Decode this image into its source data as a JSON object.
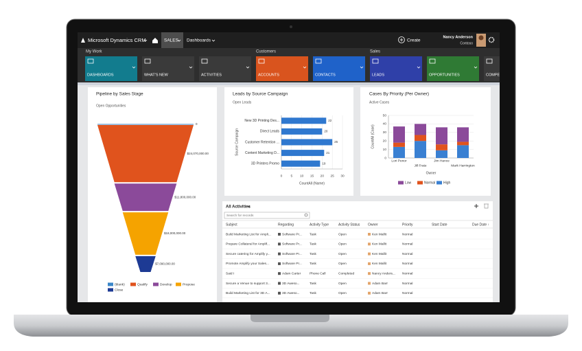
{
  "nav": {
    "brand": "Microsoft Dynamics CRM",
    "tab": "SALES",
    "menu": "Dashboards",
    "create": "Create",
    "user": "Nancy Anderson",
    "org": "Contoso"
  },
  "groups": [
    "My Work",
    "Customers",
    "Sales"
  ],
  "tiles": [
    {
      "label": "DASHBOARDS",
      "color": "#127c8e"
    },
    {
      "label": "WHAT'S NEW",
      "color": "#3a3a3a"
    },
    {
      "label": "ACTIVITIES",
      "color": "#3a3a3a"
    },
    {
      "label": "ACCOUNTS",
      "color": "#d9541e"
    },
    {
      "label": "CONTACTS",
      "color": "#1f62c9"
    },
    {
      "label": "LEADS",
      "color": "#2f40a8"
    },
    {
      "label": "OPPORTUNITIES",
      "color": "#2f7a34"
    },
    {
      "label": "COMPE",
      "color": "#3a3a3a"
    }
  ],
  "funnel": {
    "title": "Pipeline by Sales Stage",
    "subtitle": "Open Opportunities",
    "categories": [
      "(blank)",
      "Qualify",
      "Develop",
      "Propose",
      "Close"
    ],
    "colors": [
      "#3a86c8",
      "#e0531d",
      "#8b4a9a",
      "#f5a300",
      "#1d3a94"
    ],
    "values": [
      0,
      24070000,
      11800000,
      18000000,
      7090000
    ],
    "value_labels": [
      "0",
      "$24,070,000.00",
      "$11,800,000.00",
      "$18,000,000.00",
      "$7,090,000.00"
    ]
  },
  "leads_chart": {
    "type": "bar",
    "orientation": "horizontal",
    "title": "Leads by Source Campaign",
    "subtitle": "Open Leads",
    "categories": [
      "New 3D Printing Des...",
      "Direct Leads",
      "Customer Retention ...",
      "Content Marketing D...",
      "3D Printers Promo"
    ],
    "values": [
      22,
      20,
      25,
      21,
      19
    ],
    "color": "#2f78cf",
    "xlim": [
      0,
      30
    ],
    "xticks": [
      0,
      5,
      10,
      15,
      20,
      25,
      30
    ],
    "xlabel": "CountAll (Name)",
    "ylabel": "Source Campaign",
    "grid": true
  },
  "cases_chart": {
    "type": "stacked_bar",
    "title": "Cases By Priority (Per Owner)",
    "subtitle": "Active Cases",
    "categories": [
      "Lori Penor",
      "Jill Frate",
      "Jim Hance",
      "Mark Harrington"
    ],
    "series": [
      {
        "name": "Low",
        "color": "#8b4a9a",
        "values": [
          19,
          13,
          20,
          17
        ]
      },
      {
        "name": "Normal",
        "color": "#e0531d",
        "values": [
          5,
          7,
          7,
          4
        ]
      },
      {
        "name": "High",
        "color": "#3a80d2",
        "values": [
          13,
          20,
          9,
          15
        ]
      }
    ],
    "ylim": [
      0,
      50
    ],
    "yticks": [
      0,
      10,
      20,
      30,
      40,
      50
    ],
    "xlabel": "Owner",
    "ylabel": "CountAll (Case)",
    "grid": true
  },
  "activities": {
    "view": "All Activities",
    "search": "Search for records",
    "columns": [
      "Subject",
      "Regarding",
      "Activity Type",
      "Activity Status",
      "Owner",
      "Priority",
      "Start Date",
      "Due Date ↑"
    ],
    "rows": [
      [
        "Build Marketing List for Ampli...",
        "Software Pr...",
        "Task",
        "Open",
        "Ken Mallit",
        "Normal"
      ],
      [
        "Prepare Collateral for Amplif...",
        "Software Pr...",
        "Task",
        "Open",
        "Ken Mallit",
        "Normal"
      ],
      [
        "Secure catering for Amplify y...",
        "Software Pr...",
        "Task",
        "Open",
        "Ken Mallit",
        "Normal"
      ],
      [
        "Promote Amplify your Sales...",
        "Software Pr...",
        "Task",
        "Open",
        "Ken Mallit",
        "Normal"
      ],
      [
        "Said I",
        "Adam Carter",
        "Phone Call",
        "Completed",
        "Nancy Anders...",
        "Normal"
      ],
      [
        "Secure a Venue to support 3...",
        "3D Aweso...",
        "Task",
        "Open",
        "Adam Barr",
        "Normal"
      ],
      [
        "Build Marketing List for 3D A...",
        "3D Aweso...",
        "Task",
        "Open",
        "Adam Barr",
        "Normal"
      ]
    ]
  }
}
